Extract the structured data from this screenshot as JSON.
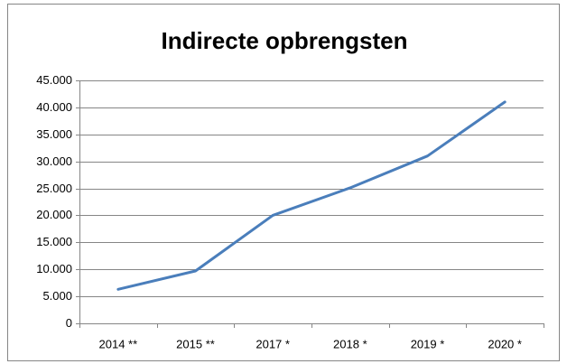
{
  "chart_data": {
    "type": "line",
    "title": "Indirecte opbrengsten",
    "categories": [
      "2014 **",
      "2015 **",
      "2017 *",
      "2018 *",
      "2019 *",
      "2020 *"
    ],
    "series": [
      {
        "name": "Indirecte opbrengsten",
        "color": "#4a7ebb",
        "values": [
          6300,
          9700,
          20000,
          25100,
          31000,
          41000
        ]
      }
    ],
    "ylim": [
      0,
      45000
    ],
    "yticks": [
      0,
      {
        "value": 5000,
        "label": "5.000"
      },
      {
        "value": 10000,
        "label": "10.000"
      },
      {
        "value": 15000,
        "label": "15.000"
      },
      {
        "value": 20000,
        "label": "20.000"
      },
      {
        "value": 25000,
        "label": "25.000"
      },
      {
        "value": 30000,
        "label": "30.000"
      },
      {
        "value": 35000,
        "label": "35.000"
      },
      {
        "value": 40000,
        "label": "40.000"
      },
      {
        "value": 45000,
        "label": "45.000"
      }
    ],
    "grid": true,
    "legend": false
  }
}
